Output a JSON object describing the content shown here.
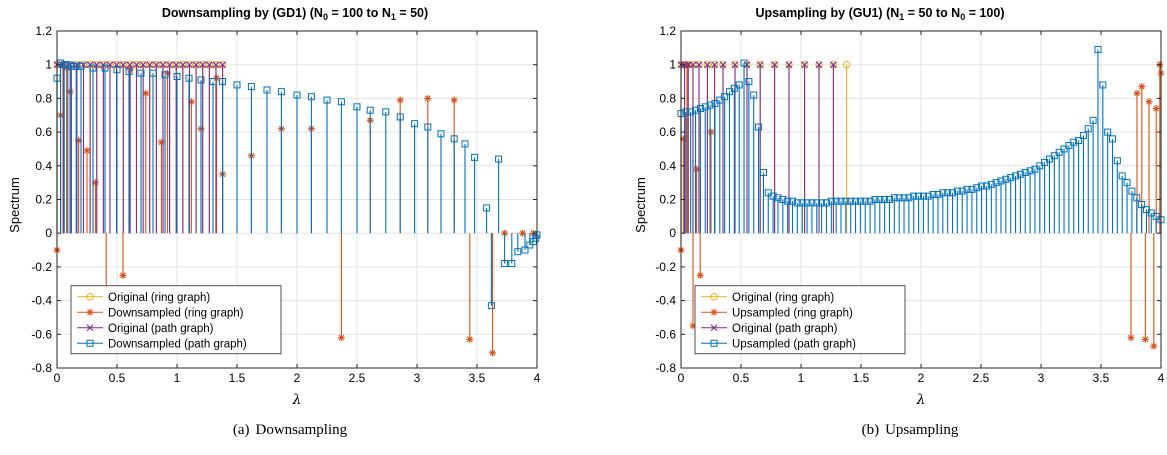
{
  "colors": {
    "original_ring": "#EDB120",
    "resampled_ring": "#D95319",
    "original_path": "#7E2F8E",
    "resampled_path": "#0072BD"
  },
  "figure": {
    "a": {
      "caption_tag": "(a)",
      "caption_text": "Downsampling",
      "title_main": "Downsampling by (GD1) (N",
      "title_s1": "0",
      "title_mid": " = 100 to N",
      "title_s2": "1",
      "title_end": " = 50)",
      "ylabel": "Spectrum",
      "xlabel": "λ",
      "legend": [
        "Original (ring graph)",
        "Downsampled (ring graph)",
        "Original (path graph)",
        "Downsampled (path graph)"
      ]
    },
    "b": {
      "caption_tag": "(b)",
      "caption_text": "Upsampling",
      "title_main": "Upsampling by (GU1) (N",
      "title_s1": "1",
      "title_mid": " = 50 to N",
      "title_s2": "0",
      "title_end": " = 100)",
      "ylabel": "Spectrum",
      "xlabel": "λ",
      "legend": [
        "Original (ring graph)",
        "Upsampled (ring graph)",
        "Original (path graph)",
        "Upsampled (path graph)"
      ]
    }
  },
  "chart_data": [
    {
      "type": "stem",
      "xlim": [
        0,
        4
      ],
      "ylim": [
        -0.8,
        1.2
      ],
      "xticks": [
        "0",
        "0.5",
        "1",
        "1.5",
        "2",
        "2.5",
        "3",
        "3.5",
        "4"
      ],
      "yticks": [
        "-0.8",
        "-0.6",
        "-0.4",
        "-0.2",
        "0",
        "0.2",
        "0.4",
        "0.6",
        "0.8",
        "1",
        "1.2"
      ],
      "grid": true,
      "legend_position": "bottom-left",
      "series": [
        {
          "name": "Original (ring graph)",
          "marker": "circle",
          "x_range": [
            0,
            1.38
          ],
          "count": 26,
          "y_const": 1.0
        },
        {
          "name": "Downsampled (ring graph)",
          "marker": "asterisk",
          "x": [
            0.0,
            0.03,
            0.05,
            0.08,
            0.11,
            0.18,
            0.25,
            0.32,
            0.41,
            0.55,
            0.61,
            0.74,
            0.87,
            0.92,
            1.12,
            1.2,
            1.33,
            1.38,
            1.62,
            1.87,
            2.12,
            2.37,
            2.61,
            2.86,
            3.09,
            3.31,
            3.44,
            3.63,
            3.73,
            3.88,
            3.97
          ],
          "y": [
            -0.1,
            0.7,
            1.0,
            0.98,
            0.84,
            0.55,
            0.49,
            0.3,
            -0.33,
            -0.25,
            0.97,
            0.83,
            0.54,
            0.95,
            0.78,
            0.62,
            0.92,
            0.35,
            0.46,
            0.62,
            0.62,
            -0.62,
            0.67,
            0.79,
            0.8,
            0.79,
            -0.63,
            -0.71,
            0.0,
            0.0,
            0.0
          ]
        },
        {
          "name": "Original (path graph)",
          "marker": "x",
          "x_range": [
            0,
            1.38
          ],
          "count": 26,
          "y_const": 1.0
        },
        {
          "name": "Downsampled (path graph)",
          "marker": "square",
          "x": [
            0.0,
            0.03,
            0.06,
            0.09,
            0.12,
            0.16,
            0.2,
            0.3,
            0.4,
            0.5,
            0.6,
            0.7,
            0.8,
            0.9,
            1.0,
            1.1,
            1.2,
            1.3,
            1.38,
            1.5,
            1.62,
            1.75,
            1.87,
            2.0,
            2.12,
            2.25,
            2.37,
            2.5,
            2.61,
            2.74,
            2.86,
            2.98,
            3.09,
            3.2,
            3.31,
            3.4,
            3.48,
            3.58,
            3.62,
            3.68,
            3.73,
            3.79,
            3.84,
            3.9,
            3.94,
            3.97,
            3.99,
            4.0
          ],
          "y": [
            0.92,
            1.01,
            1.0,
            1.0,
            0.99,
            0.99,
            0.99,
            0.98,
            0.98,
            0.97,
            0.96,
            0.95,
            0.95,
            0.94,
            0.93,
            0.92,
            0.91,
            0.9,
            0.9,
            0.88,
            0.87,
            0.85,
            0.84,
            0.82,
            0.81,
            0.79,
            0.78,
            0.75,
            0.73,
            0.72,
            0.69,
            0.65,
            0.63,
            0.59,
            0.56,
            0.53,
            0.45,
            0.15,
            -0.43,
            0.44,
            -0.18,
            -0.18,
            -0.11,
            -0.1,
            -0.07,
            -0.05,
            -0.03,
            -0.01
          ]
        }
      ]
    },
    {
      "type": "stem",
      "xlim": [
        0,
        4
      ],
      "ylim": [
        -0.8,
        1.2
      ],
      "xticks": [
        "0",
        "0.5",
        "1",
        "1.5",
        "2",
        "2.5",
        "3",
        "3.5",
        "4"
      ],
      "yticks": [
        "-0.8",
        "-0.6",
        "-0.4",
        "-0.2",
        "0",
        "0.2",
        "0.4",
        "0.6",
        "0.8",
        "1",
        "1.2"
      ],
      "grid": true,
      "legend_position": "bottom-left",
      "series": [
        {
          "name": "Original (ring graph)",
          "x": [
            0.0,
            0.03,
            0.06,
            0.1,
            0.15,
            0.22,
            0.28,
            0.35,
            0.45,
            0.55,
            0.66,
            0.78,
            0.9,
            1.03,
            1.15,
            1.27,
            1.38
          ],
          "y_const": 1.0,
          "marker": "circle"
        },
        {
          "name": "Upsampled (ring graph)",
          "marker": "asterisk",
          "x": [
            0.0,
            0.02,
            0.05,
            0.1,
            0.13,
            0.16,
            0.25,
            3.75,
            3.8,
            3.84,
            3.87,
            3.9,
            3.94,
            3.96,
            3.99,
            4.0
          ],
          "y": [
            -0.1,
            0.56,
            1.0,
            -0.55,
            0.38,
            -0.25,
            0.6,
            -0.62,
            0.83,
            0.87,
            -0.63,
            0.78,
            -0.67,
            0.74,
            1.0,
            0.95
          ]
        },
        {
          "name": "Original (path graph)",
          "x": [
            0.0,
            0.03,
            0.06,
            0.1,
            0.15,
            0.22,
            0.28,
            0.35,
            0.45,
            0.55,
            0.66,
            0.78,
            0.9,
            1.03,
            1.15,
            1.27
          ],
          "y_const": 1.0,
          "marker": "x"
        },
        {
          "name": "Upsampled (path graph)",
          "marker": "square",
          "x_range": [
            0,
            4
          ],
          "count": 100,
          "y": [
            0.71,
            0.72,
            0.72,
            0.73,
            0.74,
            0.75,
            0.76,
            0.77,
            0.79,
            0.81,
            0.84,
            0.86,
            0.88,
            1.01,
            0.9,
            0.82,
            0.63,
            0.36,
            0.24,
            0.22,
            0.21,
            0.2,
            0.19,
            0.19,
            0.18,
            0.18,
            0.18,
            0.18,
            0.18,
            0.18,
            0.18,
            0.19,
            0.19,
            0.19,
            0.19,
            0.19,
            0.19,
            0.19,
            0.19,
            0.19,
            0.2,
            0.2,
            0.2,
            0.2,
            0.21,
            0.21,
            0.21,
            0.21,
            0.22,
            0.22,
            0.22,
            0.22,
            0.23,
            0.23,
            0.24,
            0.24,
            0.24,
            0.25,
            0.25,
            0.26,
            0.26,
            0.27,
            0.28,
            0.28,
            0.29,
            0.3,
            0.31,
            0.32,
            0.33,
            0.34,
            0.35,
            0.36,
            0.37,
            0.38,
            0.4,
            0.42,
            0.44,
            0.46,
            0.48,
            0.5,
            0.52,
            0.54,
            0.55,
            0.58,
            0.62,
            0.67,
            1.09,
            0.88,
            0.6,
            0.56,
            0.43,
            0.34,
            0.3,
            0.25,
            0.21,
            0.17,
            0.14,
            0.12,
            0.1,
            0.08
          ]
        }
      ]
    }
  ]
}
